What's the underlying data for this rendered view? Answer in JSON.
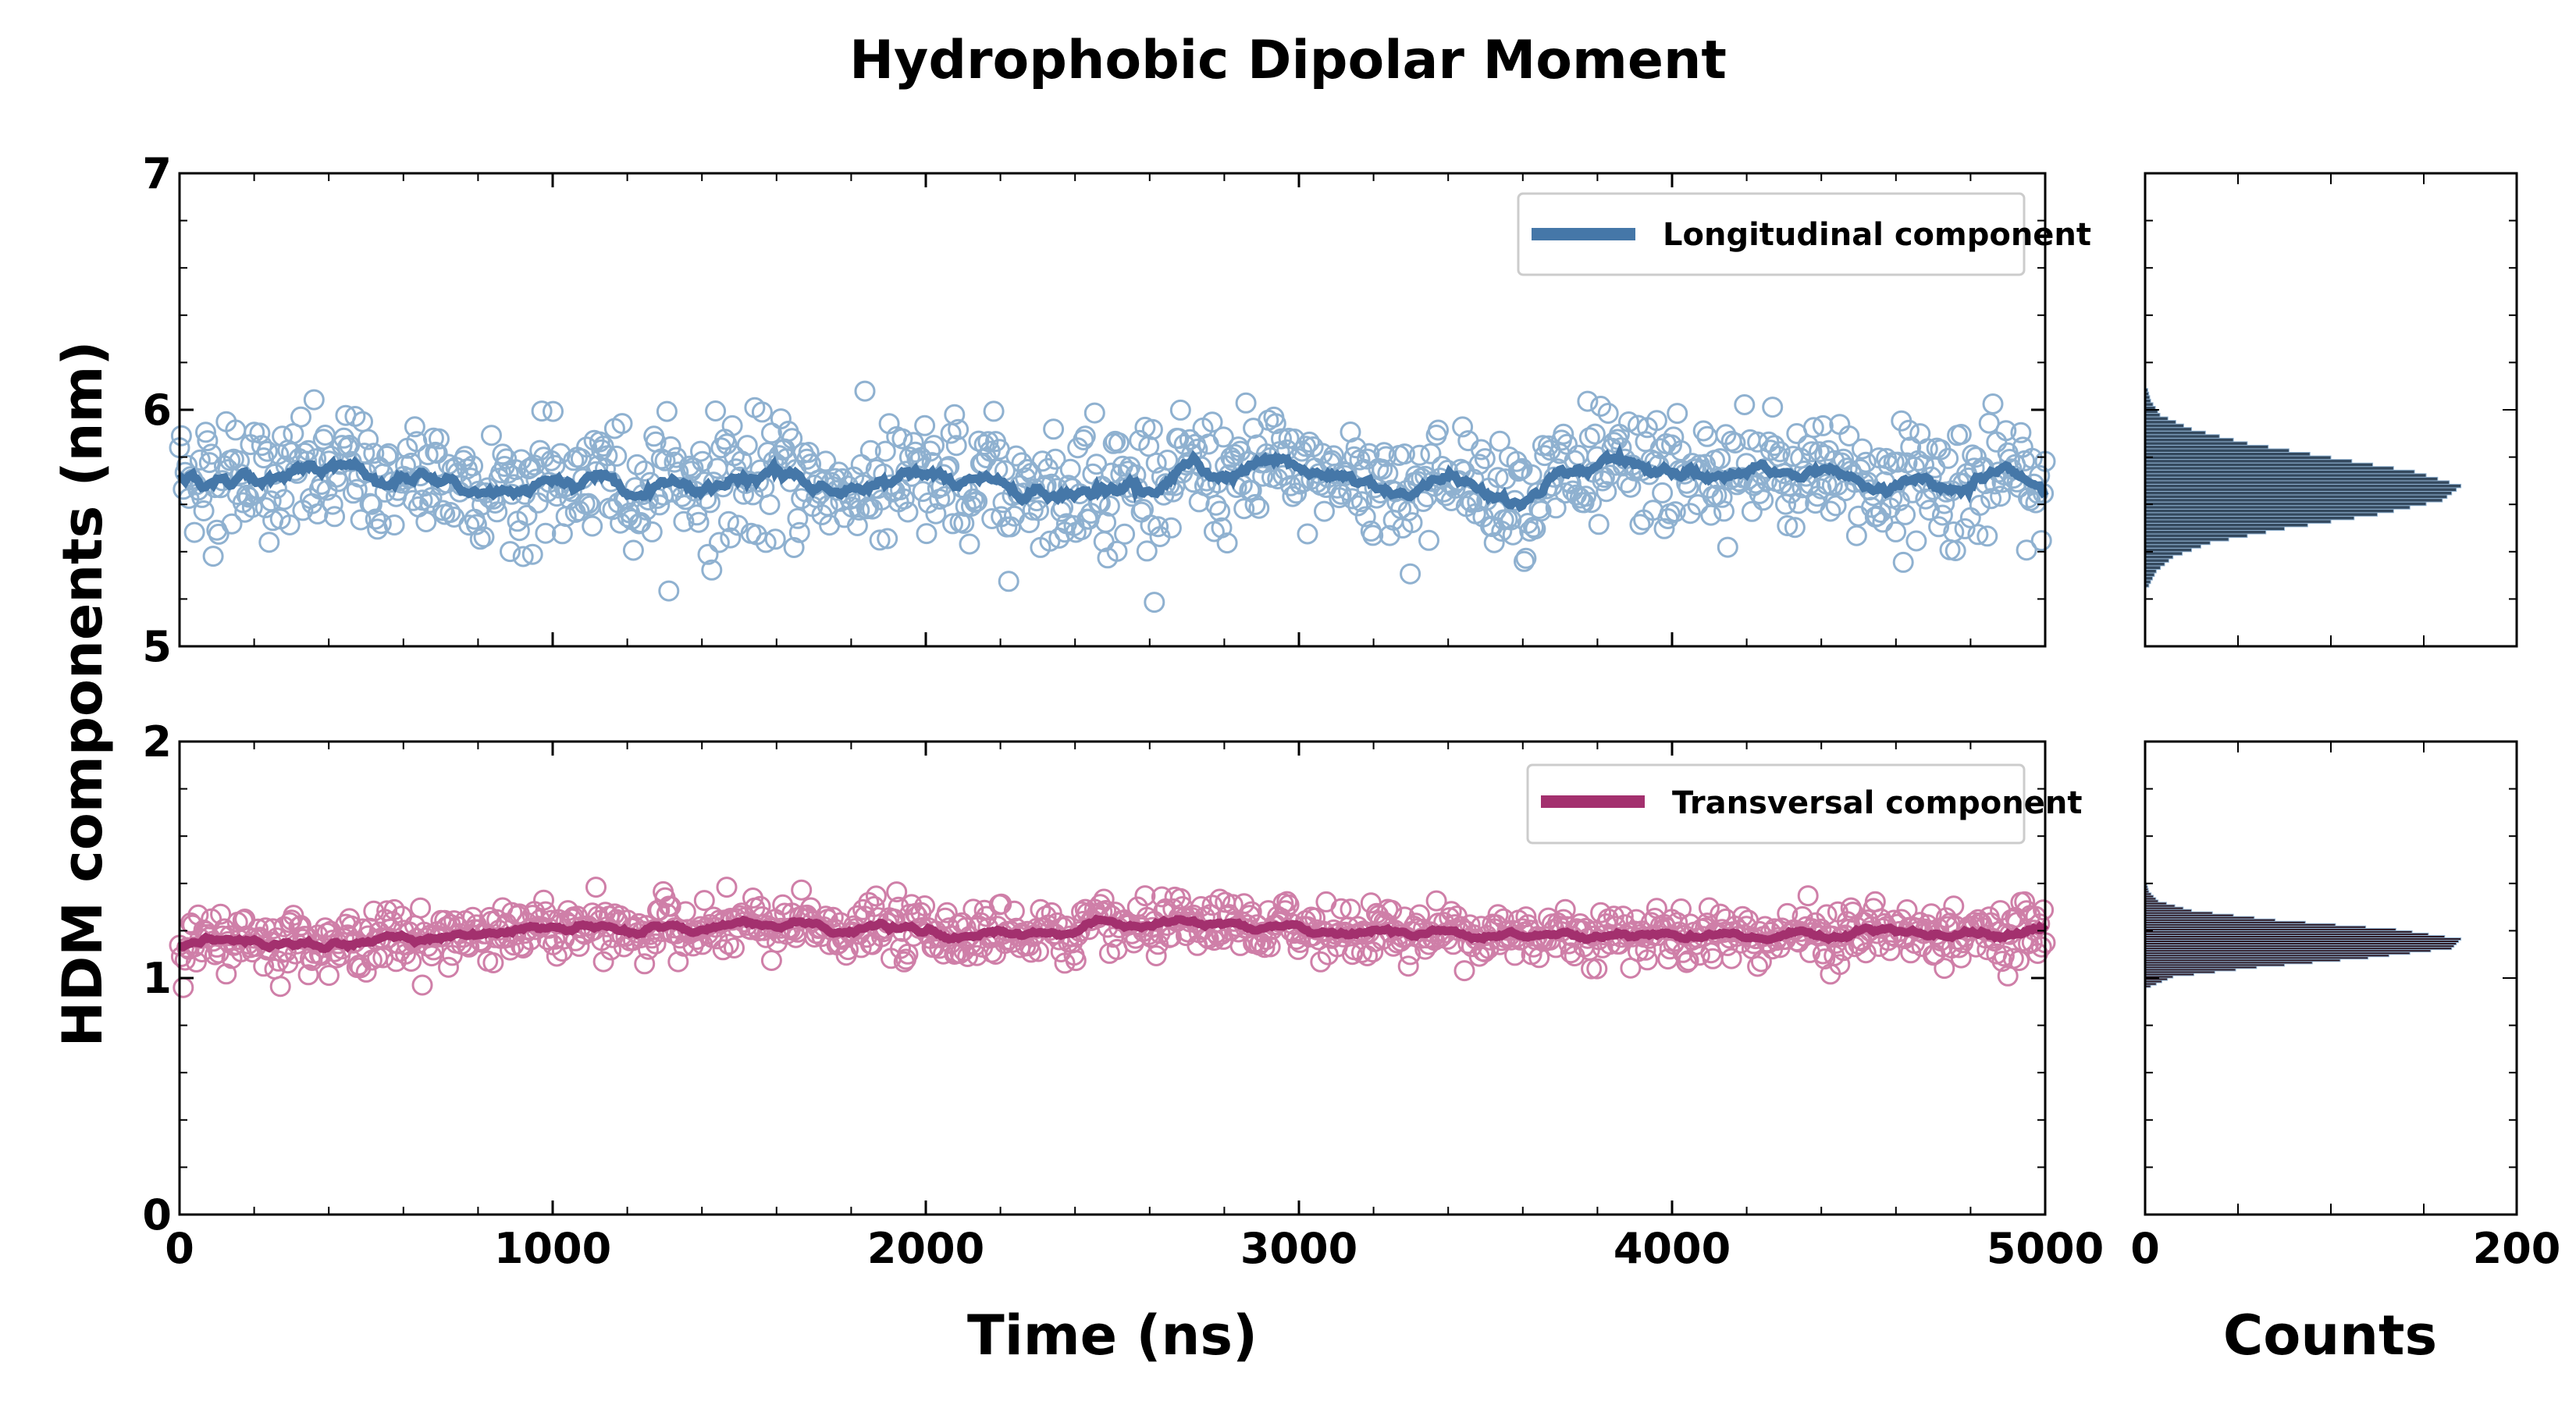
{
  "title": "Hydrophobic Dipolar Moment",
  "ylabel": "HDM components (nm)",
  "xlabel": "Time (ns)",
  "hist_xlabel": "Counts",
  "colors": {
    "longitudinal": "#4577a8",
    "longitudinal_markers": "#8fb1d0",
    "transversal": "#a3306e",
    "transversal_markers": "#cf7fa8",
    "hist_longitudinal": "#34495e",
    "hist_transversal": "#2e1a25"
  },
  "chart_data": [
    {
      "type": "scatter",
      "name": "top-panel",
      "xlim": [
        0,
        5000
      ],
      "ylim": [
        5,
        7
      ],
      "yticks": [
        "5",
        "6",
        "7"
      ],
      "legend": "Longitudinal component",
      "legend_position": "top-right",
      "series": [
        {
          "name": "Longitudinal component",
          "style": "open-circles + running-mean line",
          "x": [
            0,
            500,
            1000,
            1500,
            2000,
            2500,
            3000,
            3500,
            4000,
            4500,
            5000
          ],
          "running_mean": [
            5.72,
            5.71,
            5.68,
            5.7,
            5.66,
            5.7,
            5.72,
            5.68,
            5.72,
            5.7,
            5.7
          ],
          "spread_sd": 0.13
        }
      ]
    },
    {
      "type": "scatter",
      "name": "bottom-panel",
      "xlim": [
        0,
        5000
      ],
      "ylim": [
        0,
        2
      ],
      "yticks": [
        "0",
        "1",
        "2"
      ],
      "xticks": [
        "0",
        "1000",
        "2000",
        "3000",
        "4000",
        "5000"
      ],
      "legend": "Transversal component",
      "legend_position": "top-right",
      "series": [
        {
          "name": "Transversal component",
          "style": "open-circles + running-mean line",
          "x": [
            0,
            500,
            1000,
            1500,
            2000,
            2500,
            3000,
            3500,
            4000,
            4500,
            5000
          ],
          "running_mean": [
            1.15,
            1.16,
            1.2,
            1.21,
            1.2,
            1.2,
            1.21,
            1.19,
            1.19,
            1.19,
            1.19
          ],
          "spread_sd": 0.06
        }
      ]
    },
    {
      "type": "bar",
      "name": "hist-top",
      "orientation": "horizontal",
      "xlim": [
        0,
        200
      ],
      "ylim": [
        5,
        7
      ],
      "bins_center": [
        5.28,
        5.34,
        5.4,
        5.46,
        5.52,
        5.58,
        5.64,
        5.7,
        5.76,
        5.82,
        5.88,
        5.94,
        6.0,
        6.06
      ],
      "counts": [
        2,
        6,
        15,
        35,
        75,
        125,
        160,
        170,
        145,
        100,
        55,
        25,
        8,
        3
      ]
    },
    {
      "type": "bar",
      "name": "hist-bottom",
      "orientation": "horizontal",
      "xlim": [
        0,
        200
      ],
      "ylim": [
        0,
        2
      ],
      "xticks": [
        "0",
        "200"
      ],
      "bins_center": [
        0.98,
        1.02,
        1.06,
        1.1,
        1.14,
        1.18,
        1.22,
        1.26,
        1.3,
        1.34,
        1.38
      ],
      "counts": [
        3,
        15,
        60,
        120,
        165,
        170,
        135,
        70,
        25,
        7,
        2
      ]
    }
  ]
}
